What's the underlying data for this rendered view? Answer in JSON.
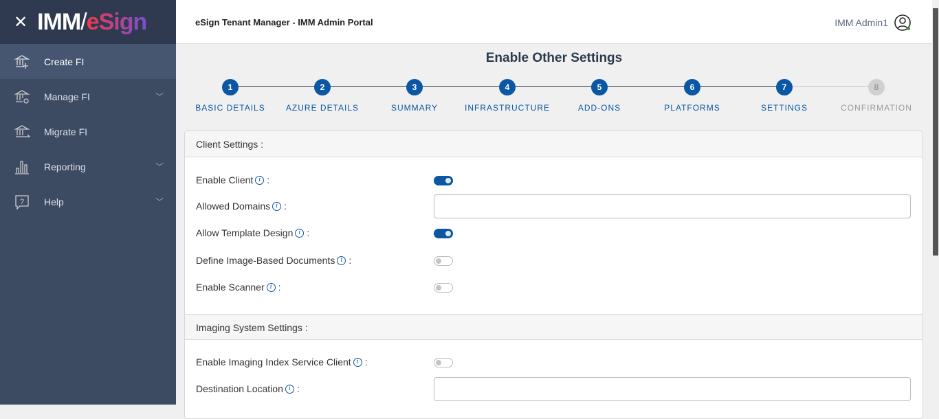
{
  "logo": {
    "imm": "IMM",
    "esign": "eSign"
  },
  "sidebar": {
    "items": [
      {
        "label": "Create FI",
        "icon": "bank-plus-icon",
        "active": true
      },
      {
        "label": "Manage FI",
        "icon": "bank-gear-icon",
        "expandable": true
      },
      {
        "label": "Migrate FI",
        "icon": "bank-arrow-icon"
      },
      {
        "label": "Reporting",
        "icon": "bar-chart-icon",
        "expandable": true
      },
      {
        "label": "Help",
        "icon": "help-bubble-icon",
        "expandable": true
      }
    ]
  },
  "header": {
    "title": "eSign Tenant Manager - IMM Admin Portal",
    "user": "IMM Admin1"
  },
  "page": {
    "title": "Enable Other Settings"
  },
  "steps": [
    {
      "n": "1",
      "label": "BASIC DETAILS"
    },
    {
      "n": "2",
      "label": "AZURE DETAILS"
    },
    {
      "n": "3",
      "label": "SUMMARY"
    },
    {
      "n": "4",
      "label": "INFRASTRUCTURE"
    },
    {
      "n": "5",
      "label": "ADD-ONS"
    },
    {
      "n": "6",
      "label": "PLATFORMS"
    },
    {
      "n": "7",
      "label": "SETTINGS"
    },
    {
      "n": "8",
      "label": "CONFIRMATION"
    }
  ],
  "colors": {
    "primary": "#0b57a4",
    "sidebar": "#3c4a62"
  },
  "client": {
    "title": "Client Settings :",
    "fields": [
      {
        "label": "Enable Client",
        "type": "toggle",
        "value": true
      },
      {
        "label": "Allowed Domains",
        "type": "text",
        "value": ""
      },
      {
        "label": "Allow Template Design",
        "type": "toggle",
        "value": true
      },
      {
        "label": "Define Image-Based Documents",
        "type": "toggle",
        "value": false
      },
      {
        "label": "Enable Scanner",
        "type": "toggle",
        "value": false
      }
    ]
  },
  "imaging": {
    "title": "Imaging System Settings :",
    "fields": [
      {
        "label": "Enable Imaging Index Service Client",
        "type": "toggle",
        "value": false
      },
      {
        "label": "Destination Location",
        "type": "text",
        "value": ""
      }
    ]
  },
  "colon": ":",
  "info": "i"
}
